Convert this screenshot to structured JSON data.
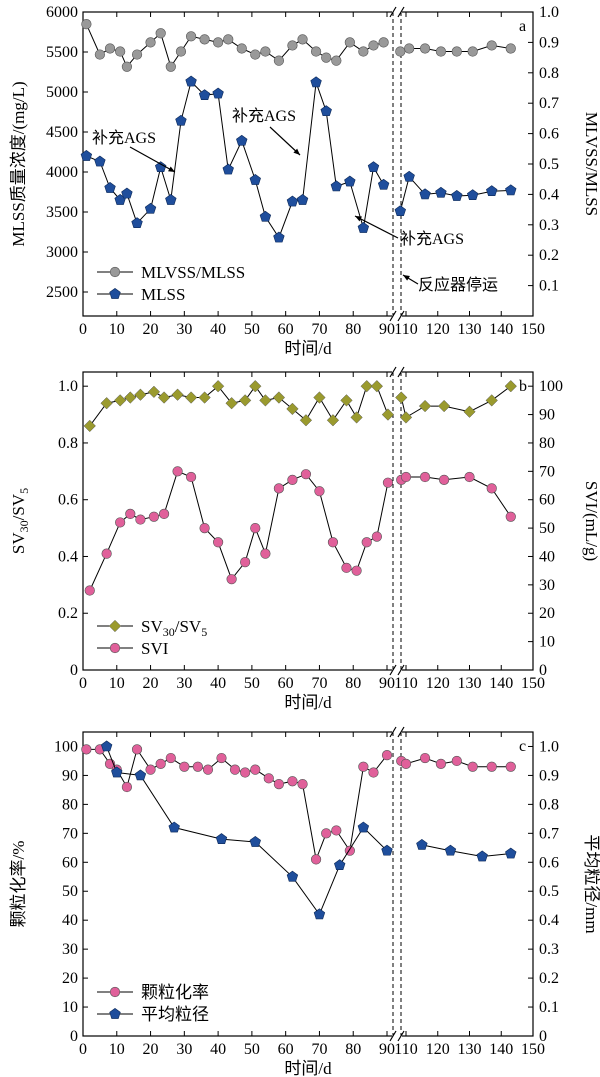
{
  "chart_data": [
    {
      "panel": "a",
      "type": "line",
      "xlabel": "时间/d",
      "ylabel_left": "MLSS质量浓度/(mg/L)",
      "ylabel_right": "MLVSS/MLSS",
      "xlim": [
        0,
        150
      ],
      "ylim_left": [
        2200,
        6000
      ],
      "ylim_right": [
        0,
        1.0
      ],
      "x_ticks": [
        "0",
        "10",
        "20",
        "30",
        "40",
        "50",
        "60",
        "70",
        "80",
        "90",
        "110",
        "120",
        "130",
        "140",
        "150"
      ],
      "y_ticks_left": [
        "2500",
        "3000",
        "3500",
        "4000",
        "4500",
        "5000",
        "5500",
        "6000"
      ],
      "y_ticks_right": [
        "0.1",
        "0.2",
        "0.3",
        "0.4",
        "0.5",
        "0.6",
        "0.7",
        "0.8",
        "0.9",
        "1.0"
      ],
      "axis_break_at_x": 93,
      "legend_position": "bottom-left",
      "series": [
        {
          "name": "MLVSS/MLSS",
          "axis": "right",
          "color": "#999999",
          "marker": "circle",
          "x": [
            1,
            5,
            8,
            11,
            13,
            16,
            20,
            23,
            26,
            29,
            32,
            36,
            40,
            43,
            47,
            51,
            54,
            58,
            62,
            65,
            69,
            72,
            75,
            79,
            83,
            86,
            89,
            104,
            111,
            116,
            121,
            126,
            131,
            137,
            143
          ],
          "y": [
            0.96,
            0.86,
            0.88,
            0.87,
            0.82,
            0.86,
            0.9,
            0.93,
            0.82,
            0.87,
            0.92,
            0.91,
            0.9,
            0.91,
            0.88,
            0.86,
            0.87,
            0.84,
            0.89,
            0.91,
            0.87,
            0.85,
            0.84,
            0.9,
            0.87,
            0.89,
            0.9,
            0.87,
            0.88,
            0.88,
            0.87,
            0.87,
            0.87,
            0.89,
            0.88
          ]
        },
        {
          "name": "MLSS",
          "axis": "left",
          "color": "#1f4e9c",
          "marker": "pentagon",
          "x": [
            1,
            5,
            8,
            11,
            13,
            16,
            20,
            23,
            26,
            29,
            32,
            36,
            40,
            43,
            47,
            51,
            54,
            58,
            62,
            65,
            69,
            72,
            75,
            79,
            83,
            86,
            89,
            104,
            111,
            116,
            121,
            126,
            131,
            137,
            143
          ],
          "y": [
            4200,
            4130,
            3800,
            3650,
            3730,
            3360,
            3540,
            4060,
            3650,
            4640,
            5130,
            4960,
            4980,
            4030,
            4390,
            3900,
            3440,
            3180,
            3630,
            3650,
            5120,
            4760,
            3820,
            3880,
            3300,
            4060,
            3840,
            3510,
            3940,
            3720,
            3740,
            3700,
            3710,
            3760,
            3770
          ]
        }
      ],
      "annotations": [
        {
          "text": "补充AGS"
        },
        {
          "text": "补充AGS"
        },
        {
          "text": "补充AGS"
        },
        {
          "text": "反应器停运"
        }
      ]
    },
    {
      "panel": "b",
      "type": "line",
      "xlabel": "时间/d",
      "ylabel_left": "SV30/SV5",
      "ylabel_right": "SVI/(mL/g)",
      "xlim": [
        0,
        150
      ],
      "ylim_left": [
        0,
        1.05
      ],
      "ylim_right": [
        0,
        105
      ],
      "x_ticks": [
        "0",
        "10",
        "20",
        "30",
        "40",
        "50",
        "60",
        "70",
        "80",
        "90",
        "110",
        "120",
        "130",
        "140",
        "150"
      ],
      "y_ticks_left": [
        "0",
        "0.2",
        "0.4",
        "0.6",
        "0.8",
        "1.0"
      ],
      "y_ticks_right": [
        "0",
        "10",
        "20",
        "30",
        "40",
        "50",
        "60",
        "70",
        "80",
        "90",
        "100"
      ],
      "axis_break_at_x": 93,
      "legend_position": "bottom-left",
      "series": [
        {
          "name": "SV30/SV5",
          "axis": "left",
          "color": "#9a9a2e",
          "marker": "diamond",
          "x": [
            2,
            7,
            11,
            14,
            17,
            21,
            24,
            28,
            32,
            36,
            40,
            44,
            48,
            51,
            54,
            58,
            62,
            66,
            70,
            74,
            78,
            81,
            84,
            87,
            91,
            105,
            110,
            116,
            122,
            130,
            137,
            143
          ],
          "y": [
            0.86,
            0.94,
            0.95,
            0.96,
            0.97,
            0.98,
            0.96,
            0.97,
            0.96,
            0.96,
            1.0,
            0.94,
            0.95,
            1.0,
            0.95,
            0.96,
            0.92,
            0.88,
            0.96,
            0.88,
            0.95,
            0.89,
            1.0,
            1.0,
            0.9,
            0.96,
            0.89,
            0.93,
            0.93,
            0.91,
            0.95,
            1.0
          ]
        },
        {
          "name": "SVI",
          "axis": "right",
          "color": "#e0609a",
          "marker": "circle",
          "x": [
            2,
            7,
            11,
            14,
            17,
            21,
            24,
            28,
            32,
            36,
            40,
            44,
            48,
            51,
            54,
            58,
            62,
            66,
            70,
            74,
            78,
            81,
            84,
            87,
            91,
            105,
            110,
            116,
            122,
            130,
            137,
            143
          ],
          "y": [
            28,
            41,
            52,
            55,
            53,
            54,
            55,
            70,
            68,
            50,
            45,
            32,
            38,
            50,
            41,
            64,
            67,
            69,
            63,
            45,
            36,
            35,
            45,
            47,
            66,
            67,
            68,
            68,
            67,
            68,
            64,
            54
          ]
        }
      ]
    },
    {
      "panel": "c",
      "type": "line",
      "xlabel": "时间/d",
      "ylabel_left": "颗粒化率/%",
      "ylabel_right": "平均粒径/mm",
      "xlim": [
        0,
        150
      ],
      "ylim_left": [
        0,
        105
      ],
      "ylim_right": [
        0,
        1.05
      ],
      "x_ticks": [
        "0",
        "10",
        "20",
        "30",
        "40",
        "50",
        "60",
        "70",
        "80",
        "90",
        "110",
        "120",
        "130",
        "140",
        "150"
      ],
      "y_ticks_left": [
        "0",
        "10",
        "20",
        "30",
        "40",
        "50",
        "60",
        "70",
        "80",
        "90",
        "100"
      ],
      "y_ticks_right": [
        "0",
        "0.1",
        "0.2",
        "0.3",
        "0.4",
        "0.5",
        "0.6",
        "0.7",
        "0.8",
        "0.9",
        "1.0"
      ],
      "axis_break_at_x": 93,
      "legend_position": "bottom-left",
      "series": [
        {
          "name": "颗粒化率",
          "axis": "left",
          "color": "#e0609a",
          "marker": "circle",
          "x": [
            1,
            5,
            8,
            10,
            13,
            16,
            20,
            23,
            26,
            30,
            34,
            37,
            41,
            45,
            48,
            51,
            55,
            58,
            62,
            65,
            69,
            72,
            75,
            79,
            83,
            86,
            90,
            105,
            110,
            116,
            121,
            126,
            131,
            137,
            143
          ],
          "y": [
            99,
            99,
            94,
            92,
            86,
            99,
            92,
            94,
            96,
            93,
            93,
            92,
            96,
            92,
            91,
            92,
            89,
            87,
            88,
            87,
            61,
            70,
            71,
            64,
            93,
            91,
            97,
            95,
            94,
            96,
            94,
            95,
            93,
            93,
            93
          ]
        },
        {
          "name": "平均粒径",
          "axis": "right",
          "color": "#1f4e9c",
          "marker": "pentagon",
          "x": [
            7,
            10,
            17,
            27,
            41,
            51,
            62,
            70,
            76,
            83,
            90,
            115,
            124,
            134,
            143
          ],
          "y": [
            1.0,
            0.91,
            0.9,
            0.72,
            0.68,
            0.67,
            0.55,
            0.42,
            0.59,
            0.72,
            0.64,
            0.66,
            0.64,
            0.62,
            0.63
          ]
        }
      ]
    }
  ]
}
